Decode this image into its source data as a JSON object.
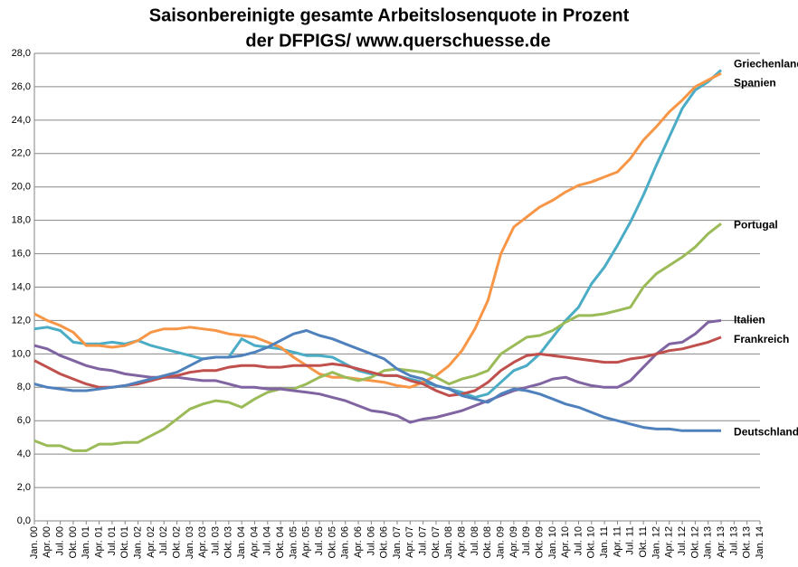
{
  "chart_data": {
    "type": "line",
    "title": "Saisonbereinigte  gesamte  Arbeitslosenquote  in Prozent",
    "subtitle": "der DFPIGS/ www.querschuesse.de",
    "categories": [
      "Jan. 00",
      "Apr. 00",
      "Jul. 00",
      "Okt. 00",
      "Jan. 01",
      "Apr. 01",
      "Jul. 01",
      "Okt. 01",
      "Jan. 02",
      "Apr. 02",
      "Jul. 02",
      "Okt. 02",
      "Jan. 03",
      "Apr. 03",
      "Jul. 03",
      "Okt. 03",
      "Jan. 04",
      "Apr. 04",
      "Jul. 04",
      "Okt. 04",
      "Jan. 05",
      "Apr. 05",
      "Jul. 05",
      "Okt. 05",
      "Jan. 06",
      "Apr. 06",
      "Jul. 06",
      "Okt. 06",
      "Jan. 07",
      "Apr. 07",
      "Jul. 07",
      "Okt. 07",
      "Jan. 08",
      "Apr. 08",
      "Jul. 08",
      "Okt. 08",
      "Jan. 09",
      "Apr. 09",
      "Jul. 09",
      "Okt. 09",
      "Jan. 10",
      "Apr. 10",
      "Jul. 10",
      "Okt. 10",
      "Jan. 11",
      "Apr. 11",
      "Jul. 11",
      "Okt. 11",
      "Jan. 12",
      "Apr. 12",
      "Jul. 12",
      "Okt. 12",
      "Jan. 13",
      "Apr. 13",
      "Jul. 13",
      "Okt. 13",
      "Jan. 14"
    ],
    "ylim": [
      0,
      28
    ],
    "yticks": [
      {
        "value": 0,
        "label": "0,0"
      },
      {
        "value": 2,
        "label": "2,0"
      },
      {
        "value": 4,
        "label": "4,0"
      },
      {
        "value": 6,
        "label": "6,0"
      },
      {
        "value": 8,
        "label": "8,0"
      },
      {
        "value": 10,
        "label": "10,0"
      },
      {
        "value": 12,
        "label": "12,0"
      },
      {
        "value": 14,
        "label": "14,0"
      },
      {
        "value": 16,
        "label": "16,0"
      },
      {
        "value": 18,
        "label": "18,0"
      },
      {
        "value": 20,
        "label": "20,0"
      },
      {
        "value": 22,
        "label": "22,0"
      },
      {
        "value": 24,
        "label": "24,0"
      },
      {
        "value": 26,
        "label": "26,0"
      },
      {
        "value": 28,
        "label": "28,0"
      }
    ],
    "grid": true,
    "series": [
      {
        "name": "Griechenland",
        "color": "#4bacc6",
        "values": [
          11.5,
          11.6,
          11.4,
          10.7,
          10.6,
          10.6,
          10.7,
          10.6,
          10.8,
          10.5,
          10.3,
          10.1,
          9.9,
          9.7,
          9.8,
          9.8,
          10.9,
          10.5,
          10.4,
          10.3,
          10.1,
          9.9,
          9.9,
          9.8,
          9.4,
          9.0,
          8.8,
          8.7,
          8.7,
          8.5,
          8.3,
          8.1,
          7.9,
          7.7,
          7.4,
          7.6,
          8.3,
          9.0,
          9.3,
          10.0,
          11.0,
          12.0,
          12.8,
          14.2,
          15.2,
          16.5,
          17.9,
          19.5,
          21.3,
          23.0,
          24.7,
          25.8,
          26.3,
          27.0,
          null,
          null,
          null
        ]
      },
      {
        "name": "Spanien",
        "color": "#f79646",
        "values": [
          12.4,
          12.0,
          11.7,
          11.3,
          10.5,
          10.5,
          10.4,
          10.5,
          10.8,
          11.3,
          11.5,
          11.5,
          11.6,
          11.5,
          11.4,
          11.2,
          11.1,
          11.0,
          10.7,
          10.4,
          9.8,
          9.3,
          8.8,
          8.6,
          8.6,
          8.5,
          8.4,
          8.3,
          8.1,
          8.0,
          8.3,
          8.7,
          9.3,
          10.2,
          11.5,
          13.2,
          16.0,
          17.6,
          18.2,
          18.8,
          19.2,
          19.7,
          20.1,
          20.3,
          20.6,
          20.9,
          21.7,
          22.8,
          23.6,
          24.5,
          25.2,
          26.0,
          26.4,
          26.8,
          null,
          null,
          null
        ]
      },
      {
        "name": "Portugal",
        "color": "#9bbb59",
        "values": [
          4.8,
          4.5,
          4.5,
          4.2,
          4.2,
          4.6,
          4.6,
          4.7,
          4.7,
          5.1,
          5.5,
          6.1,
          6.7,
          7.0,
          7.2,
          7.1,
          6.8,
          7.3,
          7.7,
          7.9,
          7.9,
          8.2,
          8.6,
          8.9,
          8.6,
          8.4,
          8.6,
          9.0,
          9.1,
          9.0,
          8.9,
          8.6,
          8.2,
          8.5,
          8.7,
          9.0,
          10.0,
          10.5,
          11.0,
          11.1,
          11.4,
          11.9,
          12.3,
          12.3,
          12.4,
          12.6,
          12.8,
          14.0,
          14.8,
          15.3,
          15.8,
          16.4,
          17.2,
          17.8,
          null,
          null,
          null
        ]
      },
      {
        "name": "Italien",
        "color": "#8064a2",
        "values": [
          10.5,
          10.3,
          9.9,
          9.6,
          9.3,
          9.1,
          9.0,
          8.8,
          8.7,
          8.6,
          8.6,
          8.6,
          8.5,
          8.4,
          8.4,
          8.2,
          8.0,
          8.0,
          7.9,
          7.9,
          7.8,
          7.7,
          7.6,
          7.4,
          7.2,
          6.9,
          6.6,
          6.5,
          6.3,
          5.9,
          6.1,
          6.2,
          6.4,
          6.6,
          6.9,
          7.2,
          7.5,
          7.8,
          8.0,
          8.2,
          8.5,
          8.6,
          8.3,
          8.1,
          8.0,
          8.0,
          8.4,
          9.2,
          10.0,
          10.6,
          10.7,
          11.2,
          11.9,
          12.0,
          null,
          null,
          null
        ]
      },
      {
        "name": "Frankreich",
        "color": "#c0504d",
        "values": [
          9.6,
          9.2,
          8.8,
          8.5,
          8.2,
          8.0,
          8.0,
          8.1,
          8.2,
          8.4,
          8.6,
          8.7,
          8.9,
          9.0,
          9.0,
          9.2,
          9.3,
          9.3,
          9.2,
          9.2,
          9.3,
          9.3,
          9.3,
          9.4,
          9.3,
          9.1,
          8.9,
          8.7,
          8.7,
          8.4,
          8.2,
          7.8,
          7.5,
          7.6,
          7.8,
          8.3,
          9.0,
          9.5,
          9.9,
          10.0,
          9.9,
          9.8,
          9.7,
          9.6,
          9.5,
          9.5,
          9.7,
          9.8,
          10.0,
          10.2,
          10.3,
          10.5,
          10.7,
          11.0,
          null,
          null,
          null
        ]
      },
      {
        "name": "Deutschland",
        "color": "#4f81bd",
        "values": [
          8.2,
          8.0,
          7.9,
          7.8,
          7.8,
          7.9,
          8.0,
          8.1,
          8.3,
          8.5,
          8.7,
          8.9,
          9.3,
          9.7,
          9.8,
          9.8,
          9.9,
          10.1,
          10.4,
          10.8,
          11.2,
          11.4,
          11.1,
          10.9,
          10.6,
          10.3,
          10.0,
          9.7,
          9.1,
          8.7,
          8.5,
          8.1,
          7.9,
          7.5,
          7.3,
          7.1,
          7.6,
          7.9,
          7.8,
          7.6,
          7.3,
          7.0,
          6.8,
          6.5,
          6.2,
          6.0,
          5.8,
          5.6,
          5.5,
          5.5,
          5.4,
          5.4,
          5.4,
          5.4,
          null,
          null,
          null
        ]
      }
    ]
  }
}
